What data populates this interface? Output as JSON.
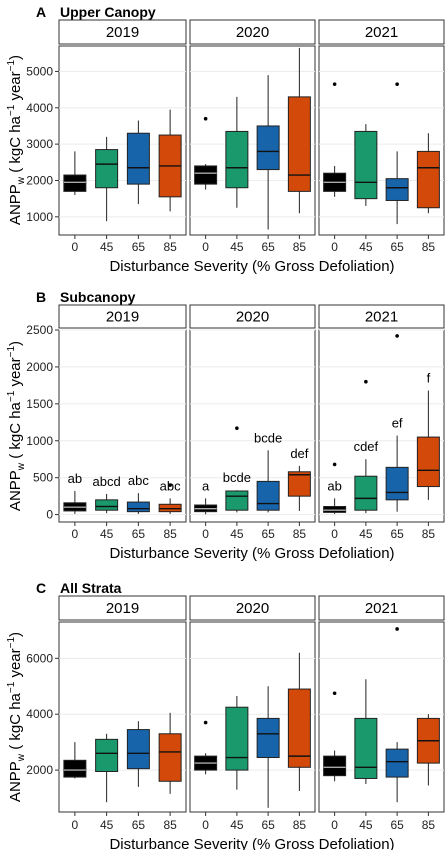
{
  "chart_data": [
    {
      "type": "box",
      "tag": "A",
      "title": "Upper Canopy",
      "xlabel": "Disturbance Severity (% Gross Defoliation)",
      "ylabel_main": "ANPP",
      "ylabel_sub": "w",
      "ylabel_unit_a": " ( kgC ha",
      "ylabel_exp_a": "−1",
      "ylabel_unit_b": " year",
      "ylabel_exp_b": "−1",
      "ylabel_close": ")",
      "facets": [
        "2019",
        "2020",
        "2021"
      ],
      "categories": [
        "0",
        "45",
        "65",
        "85"
      ],
      "ylim": [
        500,
        5700
      ],
      "yticks": [
        1000,
        2000,
        3000,
        4000,
        5000
      ],
      "boxes": [
        [
          {
            "min": 1600,
            "q1": 1700,
            "median": 1950,
            "q3": 2150,
            "max": 2800,
            "outliers": []
          },
          {
            "min": 880,
            "q1": 1800,
            "median": 2450,
            "q3": 2850,
            "max": 3200,
            "outliers": []
          },
          {
            "min": 1350,
            "q1": 1900,
            "median": 2350,
            "q3": 3300,
            "max": 3650,
            "outliers": []
          },
          {
            "min": 1150,
            "q1": 1550,
            "median": 2400,
            "q3": 3250,
            "max": 3950,
            "outliers": []
          }
        ],
        [
          {
            "min": 1750,
            "q1": 1900,
            "median": 2200,
            "q3": 2400,
            "max": 2450,
            "outliers": [
              3700
            ]
          },
          {
            "min": 1250,
            "q1": 1800,
            "median": 2350,
            "q3": 3350,
            "max": 4300,
            "outliers": []
          },
          {
            "min": 650,
            "q1": 2300,
            "median": 2800,
            "q3": 3500,
            "max": 4900,
            "outliers": []
          },
          {
            "min": 1100,
            "q1": 1700,
            "median": 2150,
            "q3": 4300,
            "max": 5650,
            "outliers": []
          }
        ],
        [
          {
            "min": 1550,
            "q1": 1700,
            "median": 1950,
            "q3": 2200,
            "max": 2400,
            "outliers": [
              4650
            ]
          },
          {
            "min": 1300,
            "q1": 1500,
            "median": 1950,
            "q3": 3350,
            "max": 3550,
            "outliers": []
          },
          {
            "min": 800,
            "q1": 1450,
            "median": 1800,
            "q3": 2050,
            "max": 2800,
            "outliers": [
              4650
            ]
          },
          {
            "min": 1100,
            "q1": 1250,
            "median": 2350,
            "q3": 2800,
            "max": 3300,
            "outliers": []
          }
        ]
      ],
      "letters": []
    },
    {
      "type": "box",
      "tag": "B",
      "title": "Subcanopy",
      "xlabel": "Disturbance Severity (% Gross Defoliation)",
      "ylabel_main": "ANPP",
      "ylabel_sub": "w",
      "ylabel_unit_a": " ( kgC ha",
      "ylabel_exp_a": "−1",
      "ylabel_unit_b": " year",
      "ylabel_exp_b": "−1",
      "ylabel_close": ")",
      "facets": [
        "2019",
        "2020",
        "2021"
      ],
      "categories": [
        "0",
        "45",
        "65",
        "85"
      ],
      "ylim": [
        -100,
        2500
      ],
      "yticks": [
        0,
        500,
        1000,
        1500,
        2000,
        2500
      ],
      "boxes": [
        [
          {
            "min": 10,
            "q1": 50,
            "median": 100,
            "q3": 160,
            "max": 320,
            "outliers": []
          },
          {
            "min": 20,
            "q1": 60,
            "median": 110,
            "q3": 200,
            "max": 280,
            "outliers": []
          },
          {
            "min": 10,
            "q1": 40,
            "median": 80,
            "q3": 170,
            "max": 290,
            "outliers": []
          },
          {
            "min": 10,
            "q1": 40,
            "median": 80,
            "q3": 140,
            "max": 220,
            "outliers": [
              400
            ]
          }
        ],
        [
          {
            "min": 5,
            "q1": 40,
            "median": 80,
            "q3": 130,
            "max": 220,
            "outliers": []
          },
          {
            "min": 30,
            "q1": 60,
            "median": 250,
            "q3": 320,
            "max": 330,
            "outliers": [
              1170
            ]
          },
          {
            "min": 30,
            "q1": 60,
            "median": 150,
            "q3": 450,
            "max": 870,
            "outliers": []
          },
          {
            "min": 50,
            "q1": 250,
            "median": 540,
            "q3": 580,
            "max": 660,
            "outliers": []
          }
        ],
        [
          {
            "min": 10,
            "q1": 30,
            "median": 60,
            "q3": 110,
            "max": 220,
            "outliers": [
              680
            ]
          },
          {
            "min": 20,
            "q1": 60,
            "median": 220,
            "q3": 520,
            "max": 750,
            "outliers": [
              1800
            ]
          },
          {
            "min": 40,
            "q1": 200,
            "median": 300,
            "q3": 640,
            "max": 1070,
            "outliers": [
              2420
            ]
          },
          {
            "min": 200,
            "q1": 380,
            "median": 600,
            "q3": 1050,
            "max": 1680,
            "outliers": []
          }
        ]
      ],
      "letters": [
        [
          "ab",
          "abcd",
          "abc",
          "abc"
        ],
        [
          "a",
          "bcde",
          "bcde",
          "def"
        ],
        [
          "ab",
          "cdef",
          "ef",
          "f"
        ]
      ]
    },
    {
      "type": "box",
      "tag": "C",
      "title": "All Strata",
      "xlabel": "Disturbance Severity (% Gross Defoliation)",
      "ylabel_main": "ANPP",
      "ylabel_sub": "w",
      "ylabel_unit_a": " ( kgC ha",
      "ylabel_exp_a": "−1",
      "ylabel_unit_b": " year",
      "ylabel_exp_b": "−1",
      "ylabel_close": ")",
      "facets": [
        "2019",
        "2020",
        "2021"
      ],
      "categories": [
        "0",
        "45",
        "65",
        "85"
      ],
      "ylim": [
        500,
        7300
      ],
      "yticks": [
        2000,
        4000,
        6000
      ],
      "boxes": [
        [
          {
            "min": 1700,
            "q1": 1750,
            "median": 2000,
            "q3": 2350,
            "max": 3000,
            "outliers": []
          },
          {
            "min": 850,
            "q1": 1950,
            "median": 2600,
            "q3": 3100,
            "max": 3300,
            "outliers": []
          },
          {
            "min": 1400,
            "q1": 2050,
            "median": 2600,
            "q3": 3450,
            "max": 3750,
            "outliers": []
          },
          {
            "min": 1150,
            "q1": 1600,
            "median": 2650,
            "q3": 3300,
            "max": 4050,
            "outliers": []
          }
        ],
        [
          {
            "min": 1850,
            "q1": 2000,
            "median": 2250,
            "q3": 2500,
            "max": 2600,
            "outliers": [
              3700
            ]
          },
          {
            "min": 1300,
            "q1": 2000,
            "median": 2450,
            "q3": 4250,
            "max": 4650,
            "outliers": []
          },
          {
            "min": 650,
            "q1": 2450,
            "median": 3300,
            "q3": 3850,
            "max": 5000,
            "outliers": []
          },
          {
            "min": 1250,
            "q1": 2100,
            "median": 2500,
            "q3": 4900,
            "max": 6200,
            "outliers": []
          }
        ],
        [
          {
            "min": 1600,
            "q1": 1800,
            "median": 2100,
            "q3": 2500,
            "max": 2700,
            "outliers": [
              4750
            ]
          },
          {
            "min": 1500,
            "q1": 1700,
            "median": 2100,
            "q3": 3850,
            "max": 5250,
            "outliers": []
          },
          {
            "min": 850,
            "q1": 1750,
            "median": 2300,
            "q3": 2750,
            "max": 3000,
            "outliers": [
              7050
            ]
          },
          {
            "min": 1450,
            "q1": 2250,
            "median": 3050,
            "q3": 3850,
            "max": 4000,
            "outliers": []
          }
        ]
      ],
      "letters": []
    }
  ],
  "colors": [
    "#000000",
    "#1a9a6c",
    "#1764ab",
    "#d2490a"
  ],
  "grid": true,
  "legend": "none"
}
